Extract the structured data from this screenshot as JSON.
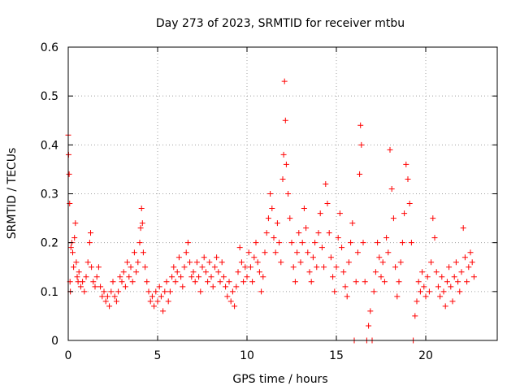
{
  "chart_data": {
    "type": "scatter",
    "title": "Day 273 of 2023, SRMTID for receiver mtbu",
    "xlabel": "GPS time / hours",
    "ylabel": "SRMTID / TECUs",
    "xlim": [
      0,
      24
    ],
    "ylim": [
      0,
      0.6
    ],
    "x_ticks": [
      "0",
      "5",
      "10",
      "15",
      "20"
    ],
    "y_ticks": [
      "0",
      "0.1",
      "0.2",
      "0.3",
      "0.4",
      "0.5",
      "0.6"
    ],
    "grid": true,
    "marker": "+",
    "color": "#ff0000",
    "series": [
      {
        "name": "SRMTID",
        "points": [
          [
            0.0,
            0.42
          ],
          [
            0.02,
            0.38
          ],
          [
            0.05,
            0.34
          ],
          [
            0.08,
            0.28
          ],
          [
            0.1,
            0.12
          ],
          [
            0.12,
            0.1
          ],
          [
            0.15,
            0.19
          ],
          [
            0.2,
            0.2
          ],
          [
            0.25,
            0.18
          ],
          [
            0.3,
            0.15
          ],
          [
            0.35,
            0.21
          ],
          [
            0.4,
            0.24
          ],
          [
            0.45,
            0.16
          ],
          [
            0.5,
            0.13
          ],
          [
            0.55,
            0.12
          ],
          [
            0.6,
            0.14
          ],
          [
            0.7,
            0.11
          ],
          [
            0.8,
            0.12
          ],
          [
            0.9,
            0.1
          ],
          [
            1.0,
            0.13
          ],
          [
            1.1,
            0.16
          ],
          [
            1.2,
            0.2
          ],
          [
            1.25,
            0.22
          ],
          [
            1.3,
            0.15
          ],
          [
            1.4,
            0.12
          ],
          [
            1.5,
            0.11
          ],
          [
            1.6,
            0.13
          ],
          [
            1.7,
            0.15
          ],
          [
            1.8,
            0.11
          ],
          [
            1.9,
            0.09
          ],
          [
            2.0,
            0.1
          ],
          [
            2.1,
            0.08
          ],
          [
            2.2,
            0.09
          ],
          [
            2.3,
            0.07
          ],
          [
            2.4,
            0.1
          ],
          [
            2.5,
            0.12
          ],
          [
            2.6,
            0.09
          ],
          [
            2.7,
            0.08
          ],
          [
            2.8,
            0.1
          ],
          [
            2.9,
            0.13
          ],
          [
            3.0,
            0.12
          ],
          [
            3.1,
            0.14
          ],
          [
            3.2,
            0.11
          ],
          [
            3.3,
            0.16
          ],
          [
            3.4,
            0.13
          ],
          [
            3.5,
            0.15
          ],
          [
            3.6,
            0.12
          ],
          [
            3.7,
            0.18
          ],
          [
            3.8,
            0.14
          ],
          [
            3.9,
            0.16
          ],
          [
            4.0,
            0.2
          ],
          [
            4.05,
            0.23
          ],
          [
            4.1,
            0.27
          ],
          [
            4.15,
            0.24
          ],
          [
            4.2,
            0.18
          ],
          [
            4.3,
            0.15
          ],
          [
            4.4,
            0.12
          ],
          [
            4.5,
            0.1
          ],
          [
            4.6,
            0.08
          ],
          [
            4.7,
            0.09
          ],
          [
            4.8,
            0.07
          ],
          [
            4.9,
            0.1
          ],
          [
            5.0,
            0.08
          ],
          [
            5.1,
            0.11
          ],
          [
            5.2,
            0.09
          ],
          [
            5.3,
            0.06
          ],
          [
            5.4,
            0.1
          ],
          [
            5.5,
            0.12
          ],
          [
            5.6,
            0.08
          ],
          [
            5.7,
            0.1
          ],
          [
            5.8,
            0.13
          ],
          [
            5.9,
            0.15
          ],
          [
            6.0,
            0.12
          ],
          [
            6.1,
            0.14
          ],
          [
            6.2,
            0.17
          ],
          [
            6.3,
            0.13
          ],
          [
            6.4,
            0.11
          ],
          [
            6.5,
            0.15
          ],
          [
            6.6,
            0.18
          ],
          [
            6.7,
            0.2
          ],
          [
            6.8,
            0.16
          ],
          [
            6.9,
            0.13
          ],
          [
            7.0,
            0.14
          ],
          [
            7.1,
            0.12
          ],
          [
            7.2,
            0.16
          ],
          [
            7.3,
            0.13
          ],
          [
            7.4,
            0.1
          ],
          [
            7.5,
            0.15
          ],
          [
            7.6,
            0.17
          ],
          [
            7.7,
            0.14
          ],
          [
            7.8,
            0.12
          ],
          [
            7.9,
            0.16
          ],
          [
            8.0,
            0.13
          ],
          [
            8.1,
            0.11
          ],
          [
            8.2,
            0.15
          ],
          [
            8.3,
            0.17
          ],
          [
            8.4,
            0.14
          ],
          [
            8.5,
            0.12
          ],
          [
            8.6,
            0.16
          ],
          [
            8.7,
            0.13
          ],
          [
            8.8,
            0.11
          ],
          [
            8.9,
            0.09
          ],
          [
            9.0,
            0.12
          ],
          [
            9.1,
            0.08
          ],
          [
            9.2,
            0.1
          ],
          [
            9.3,
            0.07
          ],
          [
            9.4,
            0.11
          ],
          [
            9.5,
            0.14
          ],
          [
            9.6,
            0.19
          ],
          [
            9.7,
            0.16
          ],
          [
            9.8,
            0.12
          ],
          [
            9.9,
            0.15
          ],
          [
            10.0,
            0.13
          ],
          [
            10.1,
            0.18
          ],
          [
            10.2,
            0.15
          ],
          [
            10.3,
            0.12
          ],
          [
            10.4,
            0.17
          ],
          [
            10.5,
            0.2
          ],
          [
            10.6,
            0.16
          ],
          [
            10.7,
            0.14
          ],
          [
            10.8,
            0.1
          ],
          [
            10.9,
            0.13
          ],
          [
            11.0,
            0.18
          ],
          [
            11.1,
            0.22
          ],
          [
            11.2,
            0.25
          ],
          [
            11.3,
            0.3
          ],
          [
            11.4,
            0.27
          ],
          [
            11.5,
            0.21
          ],
          [
            11.6,
            0.18
          ],
          [
            11.7,
            0.24
          ],
          [
            11.8,
            0.2
          ],
          [
            11.9,
            0.16
          ],
          [
            12.0,
            0.33
          ],
          [
            12.05,
            0.38
          ],
          [
            12.1,
            0.53
          ],
          [
            12.15,
            0.45
          ],
          [
            12.2,
            0.36
          ],
          [
            12.3,
            0.3
          ],
          [
            12.4,
            0.25
          ],
          [
            12.5,
            0.2
          ],
          [
            12.6,
            0.15
          ],
          [
            12.7,
            0.12
          ],
          [
            12.8,
            0.18
          ],
          [
            12.9,
            0.22
          ],
          [
            13.0,
            0.16
          ],
          [
            13.1,
            0.2
          ],
          [
            13.2,
            0.27
          ],
          [
            13.3,
            0.23
          ],
          [
            13.4,
            0.18
          ],
          [
            13.5,
            0.14
          ],
          [
            13.6,
            0.12
          ],
          [
            13.7,
            0.17
          ],
          [
            13.8,
            0.2
          ],
          [
            13.9,
            0.15
          ],
          [
            14.0,
            0.22
          ],
          [
            14.1,
            0.26
          ],
          [
            14.2,
            0.19
          ],
          [
            14.3,
            0.15
          ],
          [
            14.4,
            0.32
          ],
          [
            14.5,
            0.28
          ],
          [
            14.6,
            0.22
          ],
          [
            14.7,
            0.17
          ],
          [
            14.8,
            0.13
          ],
          [
            14.9,
            0.1
          ],
          [
            15.0,
            0.15
          ],
          [
            15.1,
            0.21
          ],
          [
            15.2,
            0.26
          ],
          [
            15.3,
            0.19
          ],
          [
            15.4,
            0.14
          ],
          [
            15.5,
            0.11
          ],
          [
            15.6,
            0.09
          ],
          [
            15.7,
            0.16
          ],
          [
            15.8,
            0.2
          ],
          [
            15.9,
            0.24
          ],
          [
            16.0,
            0.0
          ],
          [
            16.1,
            0.12
          ],
          [
            16.2,
            0.18
          ],
          [
            16.3,
            0.34
          ],
          [
            16.35,
            0.44
          ],
          [
            16.4,
            0.4
          ],
          [
            16.5,
            0.2
          ],
          [
            16.6,
            0.12
          ],
          [
            16.7,
            0.0
          ],
          [
            16.8,
            0.03
          ],
          [
            16.9,
            0.06
          ],
          [
            17.0,
            0.0
          ],
          [
            17.1,
            0.1
          ],
          [
            17.2,
            0.14
          ],
          [
            17.3,
            0.2
          ],
          [
            17.4,
            0.17
          ],
          [
            17.5,
            0.13
          ],
          [
            17.6,
            0.16
          ],
          [
            17.7,
            0.12
          ],
          [
            17.8,
            0.21
          ],
          [
            17.9,
            0.18
          ],
          [
            18.0,
            0.39
          ],
          [
            18.1,
            0.31
          ],
          [
            18.2,
            0.25
          ],
          [
            18.3,
            0.15
          ],
          [
            18.4,
            0.09
          ],
          [
            18.5,
            0.12
          ],
          [
            18.6,
            0.16
          ],
          [
            18.7,
            0.2
          ],
          [
            18.8,
            0.26
          ],
          [
            18.9,
            0.36
          ],
          [
            19.0,
            0.33
          ],
          [
            19.1,
            0.28
          ],
          [
            19.2,
            0.2
          ],
          [
            19.3,
            0.0
          ],
          [
            19.4,
            0.05
          ],
          [
            19.5,
            0.08
          ],
          [
            19.6,
            0.12
          ],
          [
            19.7,
            0.1
          ],
          [
            19.8,
            0.14
          ],
          [
            19.9,
            0.11
          ],
          [
            20.0,
            0.09
          ],
          [
            20.1,
            0.13
          ],
          [
            20.2,
            0.1
          ],
          [
            20.3,
            0.16
          ],
          [
            20.4,
            0.25
          ],
          [
            20.5,
            0.21
          ],
          [
            20.6,
            0.14
          ],
          [
            20.7,
            0.11
          ],
          [
            20.8,
            0.09
          ],
          [
            20.9,
            0.13
          ],
          [
            21.0,
            0.1
          ],
          [
            21.1,
            0.07
          ],
          [
            21.2,
            0.12
          ],
          [
            21.3,
            0.15
          ],
          [
            21.4,
            0.11
          ],
          [
            21.5,
            0.08
          ],
          [
            21.6,
            0.13
          ],
          [
            21.7,
            0.16
          ],
          [
            21.8,
            0.12
          ],
          [
            21.9,
            0.1
          ],
          [
            22.0,
            0.14
          ],
          [
            22.1,
            0.23
          ],
          [
            22.2,
            0.17
          ],
          [
            22.3,
            0.12
          ],
          [
            22.4,
            0.15
          ],
          [
            22.5,
            0.18
          ],
          [
            22.6,
            0.16
          ],
          [
            22.7,
            0.13
          ]
        ]
      }
    ]
  }
}
